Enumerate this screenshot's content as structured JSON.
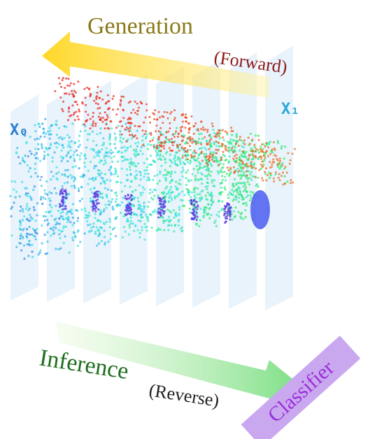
{
  "labels": {
    "generation": "Generation",
    "forward": "(Forward)",
    "x0": "X₀",
    "x1": "X₁",
    "inference": "Inference",
    "reverse": "(Reverse)",
    "classifier": "Classifier"
  }
}
